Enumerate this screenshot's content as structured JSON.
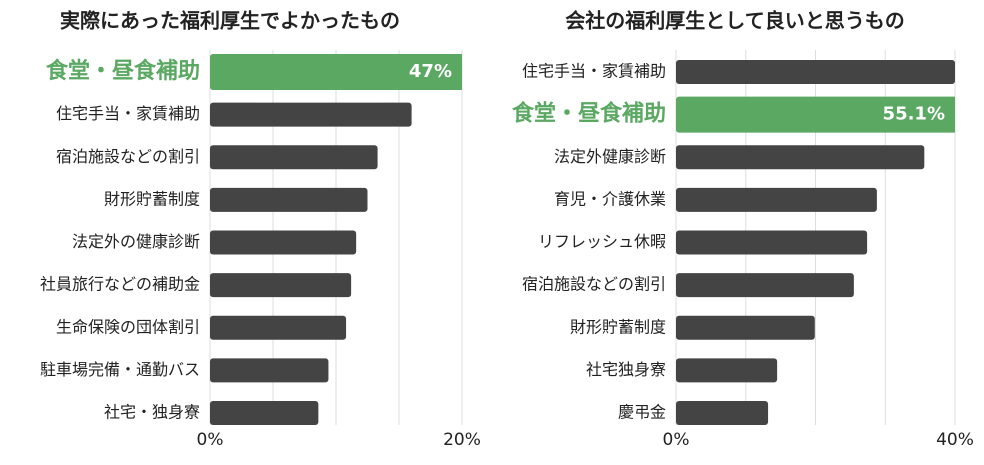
{
  "chart_data": [
    {
      "type": "bar",
      "title": "実際にあった福利厚生でよかったもの",
      "categories": [
        "食堂・昼食補助",
        "住宅手当・家賃補助",
        "宿泊施設などの割引",
        "財形貯蓄制度",
        "法定外の健康診断",
        "社員旅行などの補助金",
        "生命保険の団体割引",
        "駐車場完備・通勤バス",
        "社宅・独身寮"
      ],
      "values": [
        47,
        16.0,
        13.3,
        12.5,
        11.6,
        11.2,
        10.8,
        9.4,
        8.6
      ],
      "value_labels": [
        "47%",
        null,
        null,
        null,
        null,
        null,
        null,
        null,
        null
      ],
      "colors": [
        "#5aa862",
        "#444444",
        "#444444",
        "#444444",
        "#444444",
        "#444444",
        "#444444",
        "#444444",
        "#444444"
      ],
      "xlim": [
        0,
        20
      ],
      "xticks": [
        {
          "value": 0,
          "label": "0%"
        },
        {
          "value": 5,
          "label": null
        },
        {
          "value": 10,
          "label": null
        },
        {
          "value": 15,
          "label": null
        },
        {
          "value": 20,
          "label": "20%"
        }
      ],
      "grid": true
    },
    {
      "type": "bar",
      "title": "会社の福利厚生として良いと思うもの",
      "categories": [
        "住宅手当・家賃補助",
        "食堂・昼食補助",
        "法定外健康診断",
        "育児・介護休業",
        "リフレッシュ休暇",
        "宿泊施設などの割引",
        "財形貯蓄制度",
        "社宅独身寮",
        "慶弔金"
      ],
      "values": [
        40,
        55.1,
        35.6,
        28.8,
        27.4,
        25.5,
        19.9,
        14.5,
        13.2
      ],
      "value_labels": [
        null,
        "55.1%",
        null,
        null,
        null,
        null,
        null,
        null,
        null
      ],
      "colors": [
        "#444444",
        "#5aa862",
        "#444444",
        "#444444",
        "#444444",
        "#444444",
        "#444444",
        "#444444",
        "#444444"
      ],
      "xlim": [
        0,
        40
      ],
      "xticks": [
        {
          "value": 0,
          "label": "0%"
        },
        {
          "value": 10,
          "label": null
        },
        {
          "value": 20,
          "label": null
        },
        {
          "value": 30,
          "label": null
        },
        {
          "value": 40,
          "label": "40%"
        }
      ],
      "grid": true
    }
  ]
}
